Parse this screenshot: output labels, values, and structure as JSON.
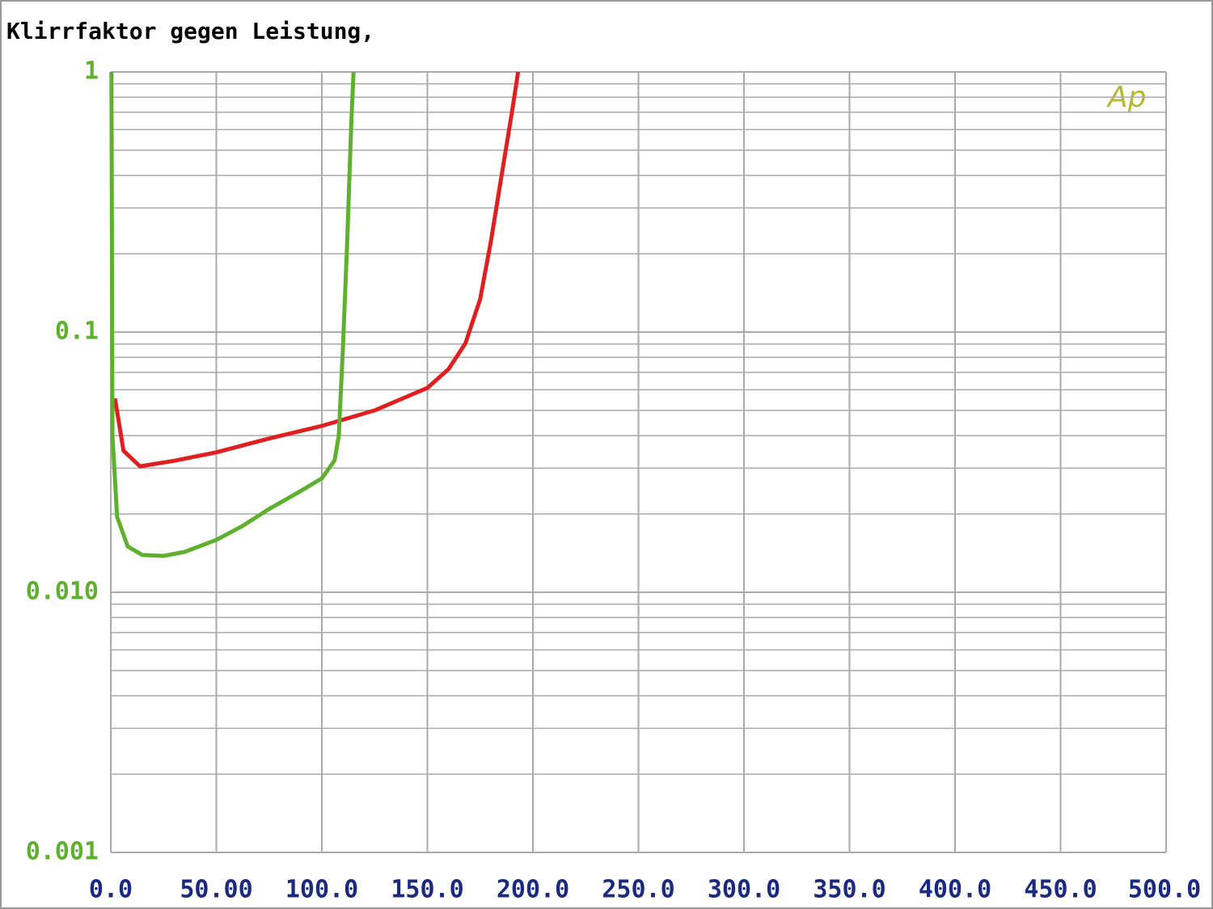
{
  "chart_data": {
    "type": "line",
    "title": "Klirrfaktor gegen Leistung,",
    "watermark": "Ap",
    "log_y": true,
    "grid": true,
    "minor_grid": true,
    "xlim": [
      0,
      500
    ],
    "ylim": [
      0.001,
      1
    ],
    "xticks": [
      {
        "value": 0,
        "label": "0.0"
      },
      {
        "value": 50,
        "label": "50.00"
      },
      {
        "value": 100,
        "label": "100.0"
      },
      {
        "value": 150,
        "label": "150.0"
      },
      {
        "value": 200,
        "label": "200.0"
      },
      {
        "value": 250,
        "label": "250.0"
      },
      {
        "value": 300,
        "label": "300.0"
      },
      {
        "value": 350,
        "label": "350.0"
      },
      {
        "value": 400,
        "label": "400.0"
      },
      {
        "value": 450,
        "label": "450.0"
      },
      {
        "value": 500,
        "label": "500.0"
      }
    ],
    "yticks": [
      1,
      0.1,
      {
        "value": 0.01,
        "label": "0.010"
      },
      0.001
    ],
    "series": [
      {
        "color": "#e02020",
        "x": [
          2,
          6,
          13.8,
          30,
          50,
          75,
          100,
          125,
          150,
          160,
          168,
          175,
          180,
          185,
          190,
          193
        ],
        "values": [
          0.0556,
          0.035,
          0.0305,
          0.032,
          0.0345,
          0.039,
          0.0436,
          0.05,
          0.061,
          0.072,
          0.0905,
          0.134,
          0.221,
          0.392,
          0.695,
          1
        ]
      },
      {
        "color": "#60b030",
        "x": [
          0.3,
          0.8,
          3,
          8,
          15,
          25,
          35,
          50,
          62,
          75,
          90,
          100,
          106,
          108,
          110,
          112,
          114,
          115
        ],
        "values": [
          1,
          0.0398,
          0.0195,
          0.015,
          0.0139,
          0.0138,
          0.0143,
          0.0159,
          0.0179,
          0.0209,
          0.0245,
          0.0274,
          0.0321,
          0.0398,
          0.0873,
          0.221,
          0.647,
          1
        ]
      }
    ]
  }
}
